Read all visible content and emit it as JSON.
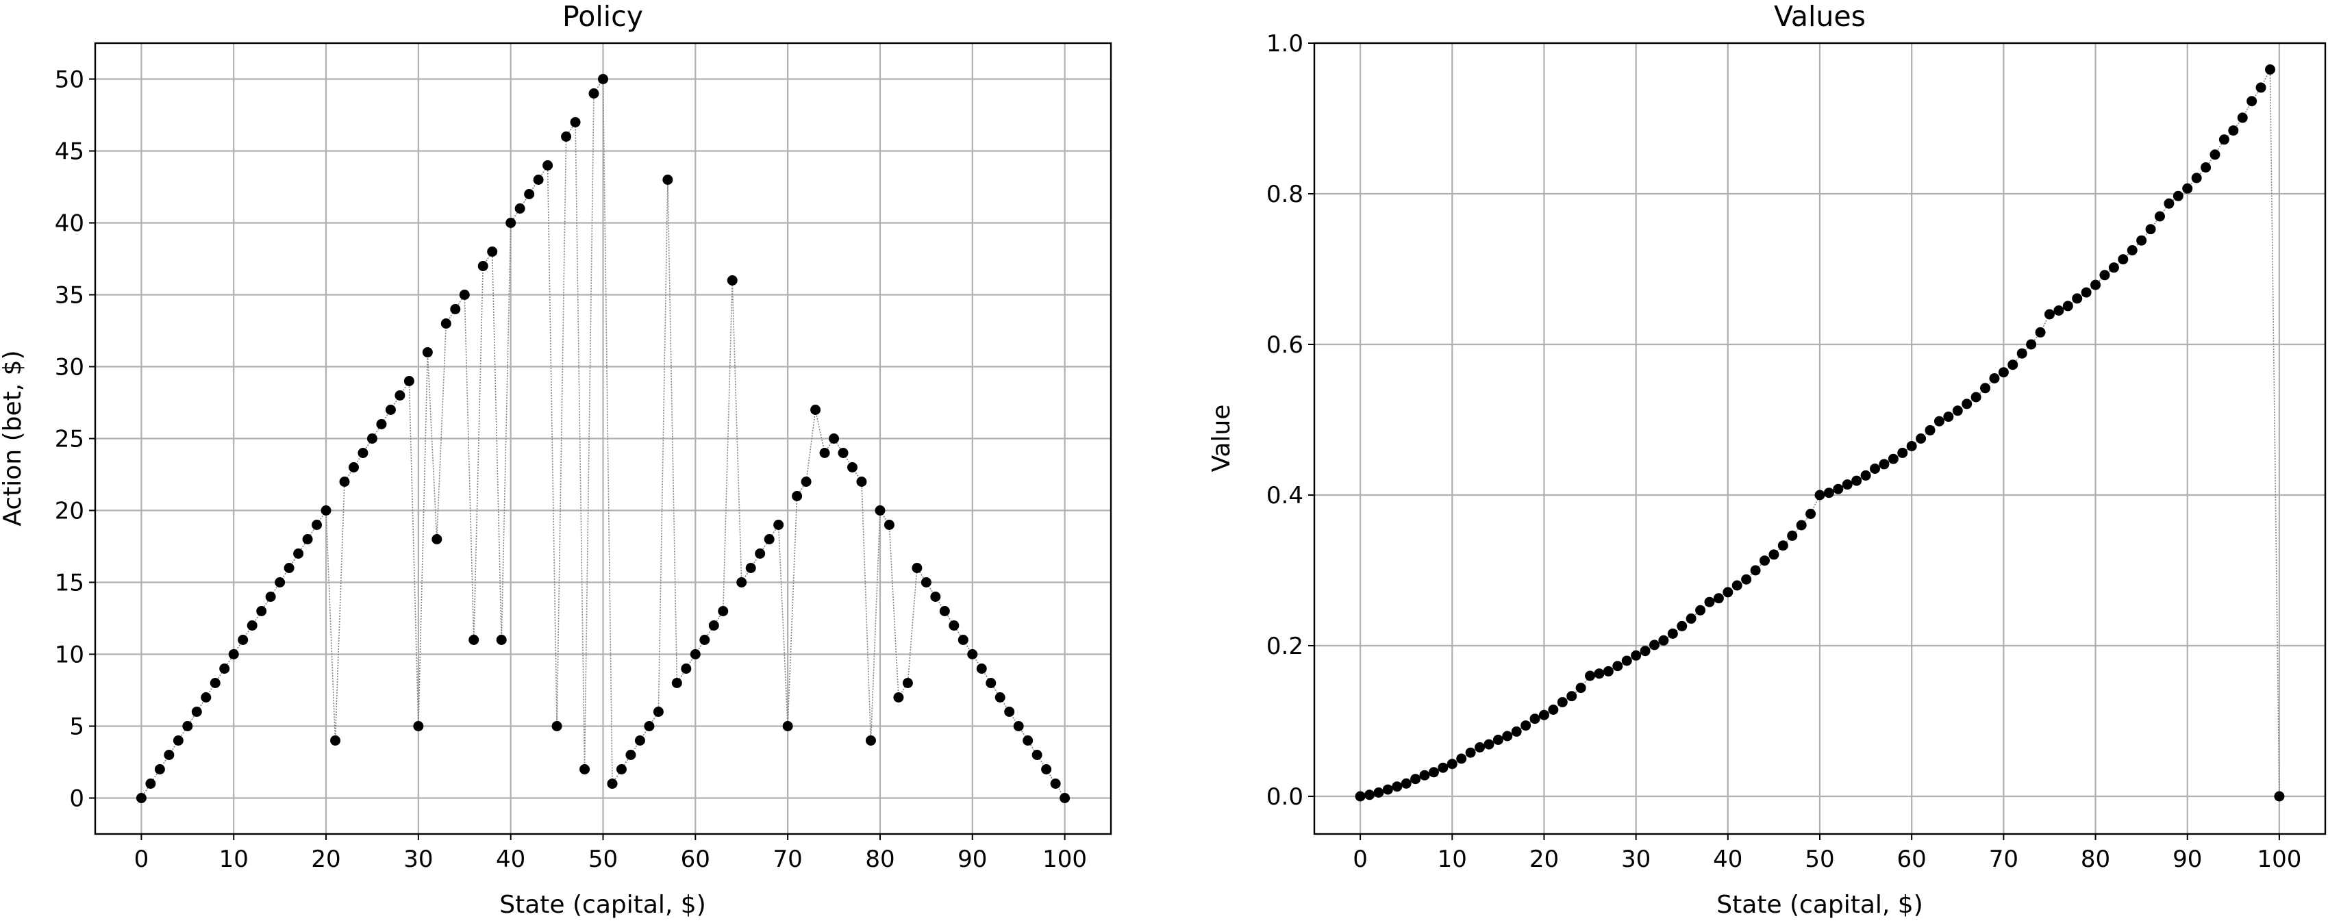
{
  "chart_data": [
    {
      "type": "line",
      "title": "Policy",
      "xlabel": "State (capital, $)",
      "ylabel": "Action (bet, $)",
      "xlim": [
        -5,
        105
      ],
      "ylim": [
        -2.5,
        52.5
      ],
      "xticks": [
        0,
        10,
        20,
        30,
        40,
        50,
        60,
        70,
        80,
        90,
        100
      ],
      "yticks": [
        0,
        5,
        10,
        15,
        20,
        25,
        30,
        35,
        40,
        45,
        50
      ],
      "grid": true,
      "marker": "o",
      "marker_color": "#000000",
      "line_style": "dotted",
      "line_color": "#808080",
      "x": [
        0,
        1,
        2,
        3,
        4,
        5,
        6,
        7,
        8,
        9,
        10,
        11,
        12,
        13,
        14,
        15,
        16,
        17,
        18,
        19,
        20,
        21,
        22,
        23,
        24,
        25,
        26,
        27,
        28,
        29,
        30,
        31,
        32,
        33,
        34,
        35,
        36,
        37,
        38,
        39,
        40,
        41,
        42,
        43,
        44,
        45,
        46,
        47,
        48,
        49,
        50,
        51,
        52,
        53,
        54,
        55,
        56,
        57,
        58,
        59,
        60,
        61,
        62,
        63,
        64,
        65,
        66,
        67,
        68,
        69,
        70,
        71,
        72,
        73,
        74,
        75,
        76,
        77,
        78,
        79,
        80,
        81,
        82,
        83,
        84,
        85,
        86,
        87,
        88,
        89,
        90,
        91,
        92,
        93,
        94,
        95,
        96,
        97,
        98,
        99,
        100
      ],
      "y": [
        0,
        1,
        2,
        3,
        4,
        5,
        6,
        7,
        8,
        9,
        10,
        11,
        12,
        13,
        14,
        15,
        16,
        17,
        18,
        19,
        20,
        4,
        22,
        23,
        24,
        25,
        26,
        27,
        28,
        29,
        5,
        31,
        18,
        33,
        34,
        35,
        11,
        37,
        38,
        11,
        40,
        41,
        42,
        43,
        44,
        5,
        46,
        47,
        2,
        49,
        50,
        1,
        2,
        3,
        4,
        5,
        6,
        43,
        8,
        9,
        10,
        11,
        12,
        13,
        36,
        15,
        16,
        17,
        18,
        19,
        5,
        21,
        22,
        27,
        24,
        25,
        24,
        23,
        22,
        4,
        20,
        19,
        7,
        8,
        16,
        15,
        14,
        13,
        12,
        11,
        10,
        9,
        8,
        7,
        6,
        5,
        4,
        3,
        2,
        1,
        0
      ]
    },
    {
      "type": "line",
      "title": "Values",
      "xlabel": "State (capital, $)",
      "ylabel": "Value",
      "xlim": [
        -5,
        105
      ],
      "ylim": [
        -0.05,
        1.0
      ],
      "xticks": [
        0,
        10,
        20,
        30,
        40,
        50,
        60,
        70,
        80,
        90,
        100
      ],
      "yticks": [
        "0.0",
        "0.2",
        "0.4",
        "0.6",
        "0.8",
        "1.0"
      ],
      "grid": true,
      "marker": "o",
      "marker_color": "#000000",
      "line_style": "dotted",
      "line_color": "#808080",
      "x": [
        0,
        1,
        2,
        3,
        4,
        5,
        6,
        7,
        8,
        9,
        10,
        11,
        12,
        13,
        14,
        15,
        16,
        17,
        18,
        19,
        20,
        21,
        22,
        23,
        24,
        25,
        26,
        27,
        28,
        29,
        30,
        31,
        32,
        33,
        34,
        35,
        36,
        37,
        38,
        39,
        40,
        41,
        42,
        43,
        44,
        45,
        46,
        47,
        48,
        49,
        50,
        51,
        52,
        53,
        54,
        55,
        56,
        57,
        58,
        59,
        60,
        61,
        62,
        63,
        64,
        65,
        66,
        67,
        68,
        69,
        70,
        71,
        72,
        73,
        74,
        75,
        76,
        77,
        78,
        79,
        80,
        81,
        82,
        83,
        84,
        85,
        86,
        87,
        88,
        89,
        90,
        91,
        92,
        93,
        94,
        95,
        96,
        97,
        98,
        99,
        100
      ],
      "y": [
        0,
        0.002,
        0.005,
        0.009,
        0.013,
        0.017,
        0.023,
        0.028,
        0.032,
        0.038,
        0.043,
        0.05,
        0.058,
        0.065,
        0.069,
        0.075,
        0.08,
        0.086,
        0.094,
        0.103,
        0.108,
        0.115,
        0.125,
        0.133,
        0.144,
        0.16,
        0.163,
        0.166,
        0.173,
        0.18,
        0.187,
        0.193,
        0.201,
        0.207,
        0.216,
        0.226,
        0.236,
        0.247,
        0.258,
        0.263,
        0.271,
        0.28,
        0.288,
        0.3,
        0.313,
        0.321,
        0.333,
        0.346,
        0.36,
        0.375,
        0.4,
        0.403,
        0.408,
        0.414,
        0.419,
        0.426,
        0.435,
        0.441,
        0.448,
        0.456,
        0.465,
        0.475,
        0.486,
        0.498,
        0.504,
        0.512,
        0.521,
        0.53,
        0.542,
        0.555,
        0.563,
        0.573,
        0.588,
        0.6,
        0.616,
        0.64,
        0.645,
        0.651,
        0.661,
        0.669,
        0.679,
        0.692,
        0.702,
        0.713,
        0.725,
        0.738,
        0.753,
        0.77,
        0.787,
        0.797,
        0.807,
        0.821,
        0.835,
        0.852,
        0.872,
        0.884,
        0.901,
        0.923,
        0.941,
        0.965,
        0
      ]
    }
  ]
}
